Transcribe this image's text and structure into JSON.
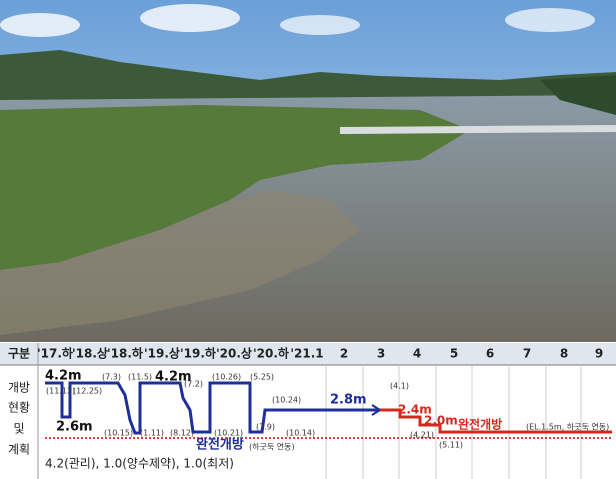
{
  "header": {
    "label": "구분",
    "periods": [
      "'17.하",
      "'18.상",
      "'18.하",
      "'19.상",
      "'19.하",
      "'20.상",
      "'20.하",
      "'21.1",
      "2",
      "3",
      "4",
      "5",
      "6",
      "7",
      "8",
      "9"
    ]
  },
  "row_labels": [
    "개방",
    "현황",
    "및",
    "계획"
  ],
  "annotations": [
    {
      "text": "4.2m",
      "kind": "level"
    },
    {
      "text": "(11.13)",
      "kind": "date"
    },
    {
      "text": "(12.25)",
      "kind": "date"
    },
    {
      "text": "2.6m",
      "kind": "level"
    },
    {
      "text": "(7.3)",
      "kind": "date"
    },
    {
      "text": "(10.15)",
      "kind": "date"
    },
    {
      "text": "(11.5)",
      "kind": "date"
    },
    {
      "text": "(1.11)",
      "kind": "date"
    },
    {
      "text": "4.2m",
      "kind": "level"
    },
    {
      "text": "(7.2)",
      "kind": "date"
    },
    {
      "text": "(8.12)",
      "kind": "date"
    },
    {
      "text": "(10.26)",
      "kind": "date"
    },
    {
      "text": "(10.21)",
      "kind": "date"
    },
    {
      "text": "(5.25)",
      "kind": "date"
    },
    {
      "text": "(7.9)",
      "kind": "date"
    },
    {
      "text": "(10.24)",
      "kind": "date"
    },
    {
      "text": "(10.14)",
      "kind": "date"
    },
    {
      "text": "2.8m",
      "kind": "blue"
    },
    {
      "text": "완전개방",
      "kind": "blue"
    },
    {
      "text": "(하굿둑 연동)",
      "kind": "date"
    },
    {
      "text": "(4.1)",
      "kind": "date"
    },
    {
      "text": "2.4m",
      "kind": "red"
    },
    {
      "text": "2.0m",
      "kind": "red"
    },
    {
      "text": "(4.21)",
      "kind": "date"
    },
    {
      "text": "(5.11)",
      "kind": "date"
    },
    {
      "text": "완전개방",
      "kind": "red"
    },
    {
      "text": "(EL.1.5m, 하굿둑 연동)",
      "kind": "date"
    }
  ],
  "footer": "4.2(관리), 1.0(양수제약), 1.0(최저)"
}
